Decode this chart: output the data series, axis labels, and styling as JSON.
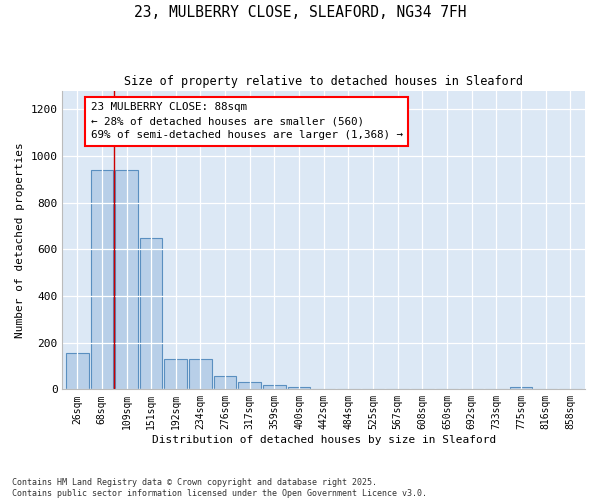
{
  "title_line1": "23, MULBERRY CLOSE, SLEAFORD, NG34 7FH",
  "title_line2": "Size of property relative to detached houses in Sleaford",
  "xlabel": "Distribution of detached houses by size in Sleaford",
  "ylabel": "Number of detached properties",
  "categories": [
    "26sqm",
    "68sqm",
    "109sqm",
    "151sqm",
    "192sqm",
    "234sqm",
    "276sqm",
    "317sqm",
    "359sqm",
    "400sqm",
    "442sqm",
    "484sqm",
    "525sqm",
    "567sqm",
    "608sqm",
    "650sqm",
    "692sqm",
    "733sqm",
    "775sqm",
    "816sqm",
    "858sqm"
  ],
  "values": [
    155,
    940,
    940,
    650,
    130,
    130,
    55,
    30,
    20,
    10,
    0,
    0,
    0,
    0,
    0,
    0,
    0,
    0,
    10,
    0,
    0
  ],
  "bar_color": "#b8cfe8",
  "bar_edge_color": "#5a8fc0",
  "bg_color": "#dce8f5",
  "vline_color": "#cc0000",
  "annotation_text": "23 MULBERRY CLOSE: 88sqm\n← 28% of detached houses are smaller (560)\n69% of semi-detached houses are larger (1,368) →",
  "footnote": "Contains HM Land Registry data © Crown copyright and database right 2025.\nContains public sector information licensed under the Open Government Licence v3.0.",
  "ylim": [
    0,
    1280
  ],
  "yticks": [
    0,
    200,
    400,
    600,
    800,
    1000,
    1200
  ]
}
